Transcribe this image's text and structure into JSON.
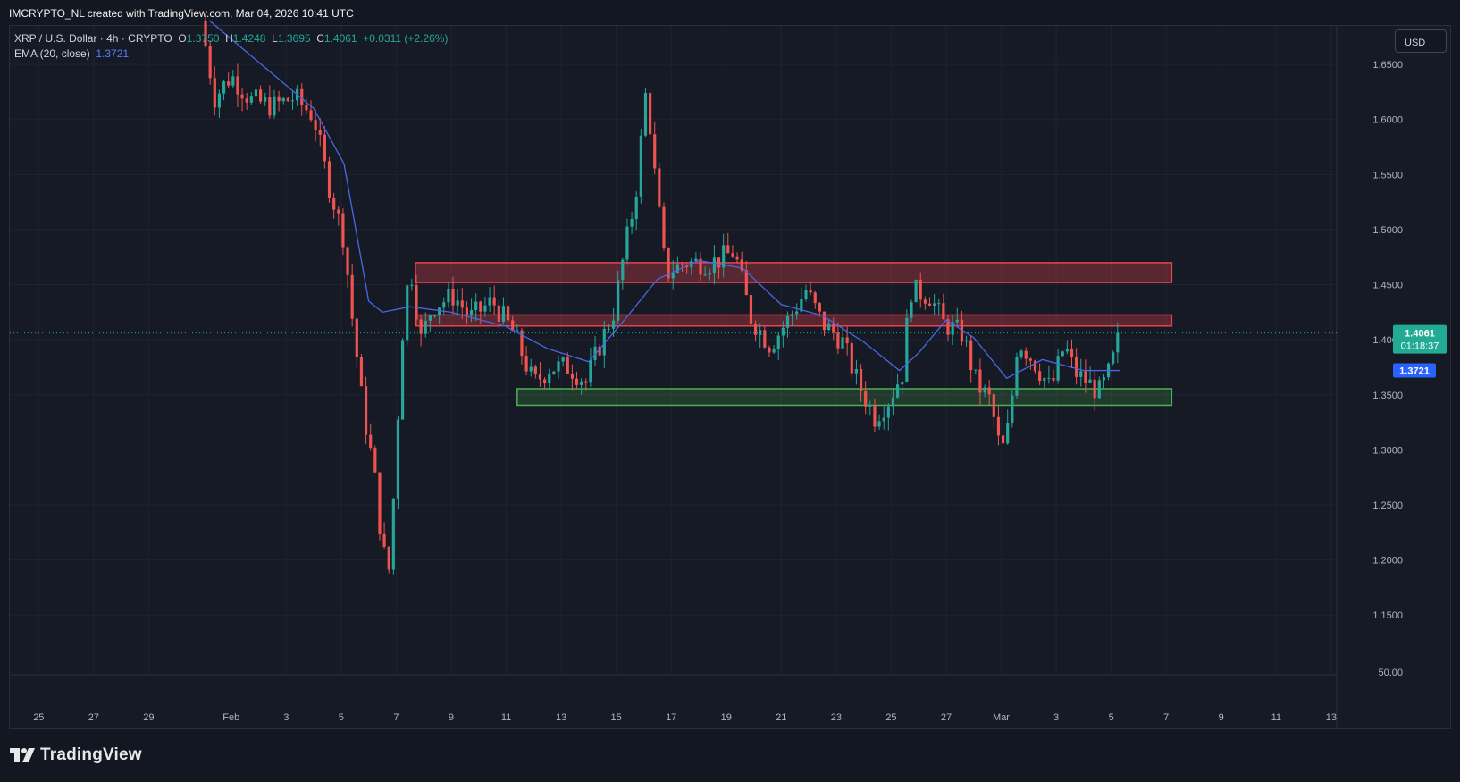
{
  "header": {
    "attribution": "IMCRYPTO_NL created with TradingView.com, Mar 04, 2026 10:41 UTC"
  },
  "legend": {
    "symbol": "XRP / U.S. Dollar · 4h · CRYPTO",
    "open_label": "O",
    "open": "1.3750",
    "high_label": "H",
    "high": "1.4248",
    "low_label": "L",
    "low": "1.3695",
    "close_label": "C",
    "close": "1.4061",
    "change": "+0.0311 (+2.26%)",
    "ema_label": "EMA (20, close)",
    "ema_value": "1.3721"
  },
  "currency_button": "USD",
  "price_tags": {
    "last_price": "1.4061",
    "countdown": "01:18:37",
    "ema_price": "1.3721"
  },
  "footer": {
    "brand": "TradingView"
  },
  "colors": {
    "background": "#131722",
    "up": "#26a69a",
    "down": "#ef5350",
    "ema": "#4a67e6",
    "resistance_zone": "#e8434f",
    "support_zone": "#4caf50"
  },
  "chart_data": {
    "type": "candlestick",
    "timeframe": "4h",
    "y_ticks": [
      "1.6500",
      "1.6000",
      "1.5500",
      "1.5000",
      "1.4500",
      "1.4000",
      "1.3500",
      "1.3000",
      "1.2500",
      "1.2000",
      "1.1500"
    ],
    "y_ticks_values": [
      1.65,
      1.6,
      1.55,
      1.5,
      1.45,
      1.4,
      1.35,
      1.3,
      1.25,
      1.2,
      1.15
    ],
    "extra_axis_label": "50.00",
    "x_ticks": [
      "25",
      "27",
      "29",
      "Feb",
      "3",
      "5",
      "7",
      "9",
      "11",
      "13",
      "15",
      "17",
      "19",
      "21",
      "23",
      "25",
      "27",
      "Mar",
      "3",
      "5",
      "7",
      "9",
      "11",
      "13"
    ],
    "x_tick_days": [
      -7,
      -5,
      -3,
      0,
      2,
      4,
      6,
      8,
      10,
      12,
      14,
      16,
      18,
      20,
      22,
      24,
      26,
      28,
      30,
      32,
      34,
      36,
      38,
      40
    ],
    "x_range_days": [
      -8.05,
      40.2
    ],
    "ylim": [
      1.125,
      1.685
    ],
    "zones": [
      {
        "kind": "resistance",
        "top": 1.47,
        "bottom": 1.452,
        "start_day": 6.7,
        "end_day": 34.2
      },
      {
        "kind": "resistance",
        "top": 1.4225,
        "bottom": 1.4125,
        "start_day": 6.7,
        "end_day": 34.2
      },
      {
        "kind": "support",
        "top": 1.3555,
        "bottom": 1.3405,
        "start_day": 10.4,
        "end_day": 34.2
      }
    ],
    "anchors": [
      {
        "day": -1.1,
        "price": 1.69
      },
      {
        "day": -0.6,
        "price": 1.62
      },
      {
        "day": 0.0,
        "price": 1.64
      },
      {
        "day": 0.7,
        "price": 1.618
      },
      {
        "day": 1.5,
        "price": 1.612
      },
      {
        "day": 2.3,
        "price": 1.62
      },
      {
        "day": 3.0,
        "price": 1.603
      },
      {
        "day": 3.5,
        "price": 1.545
      },
      {
        "day": 4.1,
        "price": 1.492
      },
      {
        "day": 4.4,
        "price": 1.42
      },
      {
        "day": 4.8,
        "price": 1.335
      },
      {
        "day": 5.2,
        "price": 1.28
      },
      {
        "day": 5.5,
        "price": 1.21
      },
      {
        "day": 5.75,
        "price": 1.19
      },
      {
        "day": 6.0,
        "price": 1.3
      },
      {
        "day": 6.2,
        "price": 1.4
      },
      {
        "day": 6.5,
        "price": 1.47
      },
      {
        "day": 6.9,
        "price": 1.4
      },
      {
        "day": 7.3,
        "price": 1.43
      },
      {
        "day": 8.1,
        "price": 1.44
      },
      {
        "day": 8.7,
        "price": 1.42
      },
      {
        "day": 9.5,
        "price": 1.435
      },
      {
        "day": 10.3,
        "price": 1.405
      },
      {
        "day": 11.0,
        "price": 1.36
      },
      {
        "day": 11.6,
        "price": 1.375
      },
      {
        "day": 12.3,
        "price": 1.375
      },
      {
        "day": 12.9,
        "price": 1.362
      },
      {
        "day": 13.4,
        "price": 1.395
      },
      {
        "day": 13.9,
        "price": 1.425
      },
      {
        "day": 14.3,
        "price": 1.48
      },
      {
        "day": 14.7,
        "price": 1.53
      },
      {
        "day": 15.1,
        "price": 1.63
      },
      {
        "day": 15.4,
        "price": 1.55
      },
      {
        "day": 15.8,
        "price": 1.46
      },
      {
        "day": 16.5,
        "price": 1.47
      },
      {
        "day": 17.5,
        "price": 1.47
      },
      {
        "day": 18.3,
        "price": 1.48
      },
      {
        "day": 18.9,
        "price": 1.42
      },
      {
        "day": 19.6,
        "price": 1.395
      },
      {
        "day": 20.3,
        "price": 1.42
      },
      {
        "day": 20.9,
        "price": 1.445
      },
      {
        "day": 21.5,
        "price": 1.415
      },
      {
        "day": 22.2,
        "price": 1.4
      },
      {
        "day": 22.8,
        "price": 1.36
      },
      {
        "day": 23.4,
        "price": 1.33
      },
      {
        "day": 23.9,
        "price": 1.345
      },
      {
        "day": 24.4,
        "price": 1.37
      },
      {
        "day": 24.7,
        "price": 1.445
      },
      {
        "day": 25.4,
        "price": 1.44
      },
      {
        "day": 25.9,
        "price": 1.415
      },
      {
        "day": 26.6,
        "price": 1.405
      },
      {
        "day": 27.1,
        "price": 1.36
      },
      {
        "day": 27.6,
        "price": 1.345
      },
      {
        "day": 28.0,
        "price": 1.295
      },
      {
        "day": 28.3,
        "price": 1.325
      },
      {
        "day": 28.6,
        "price": 1.4
      },
      {
        "day": 29.2,
        "price": 1.38
      },
      {
        "day": 29.8,
        "price": 1.355
      },
      {
        "day": 30.3,
        "price": 1.395
      },
      {
        "day": 30.7,
        "price": 1.37
      },
      {
        "day": 31.2,
        "price": 1.36
      },
      {
        "day": 31.6,
        "price": 1.352
      },
      {
        "day": 32.0,
        "price": 1.375
      },
      {
        "day": 32.3,
        "price": 1.4061
      }
    ],
    "ema_points": [
      {
        "day": -0.8,
        "price": 1.69
      },
      {
        "day": 1.0,
        "price": 1.652
      },
      {
        "day": 3.0,
        "price": 1.61
      },
      {
        "day": 4.1,
        "price": 1.56
      },
      {
        "day": 5.0,
        "price": 1.435
      },
      {
        "day": 5.5,
        "price": 1.425
      },
      {
        "day": 6.5,
        "price": 1.43
      },
      {
        "day": 8.0,
        "price": 1.425
      },
      {
        "day": 10.0,
        "price": 1.412
      },
      {
        "day": 11.5,
        "price": 1.392
      },
      {
        "day": 13.0,
        "price": 1.38
      },
      {
        "day": 14.3,
        "price": 1.418
      },
      {
        "day": 15.5,
        "price": 1.455
      },
      {
        "day": 17.0,
        "price": 1.472
      },
      {
        "day": 18.6,
        "price": 1.465
      },
      {
        "day": 20.0,
        "price": 1.432
      },
      {
        "day": 21.5,
        "price": 1.422
      },
      {
        "day": 23.0,
        "price": 1.398
      },
      {
        "day": 24.3,
        "price": 1.372
      },
      {
        "day": 25.0,
        "price": 1.388
      },
      {
        "day": 26.0,
        "price": 1.418
      },
      {
        "day": 27.0,
        "price": 1.402
      },
      {
        "day": 28.2,
        "price": 1.365
      },
      {
        "day": 29.5,
        "price": 1.382
      },
      {
        "day": 31.0,
        "price": 1.372
      },
      {
        "day": 32.3,
        "price": 1.3721
      }
    ]
  }
}
